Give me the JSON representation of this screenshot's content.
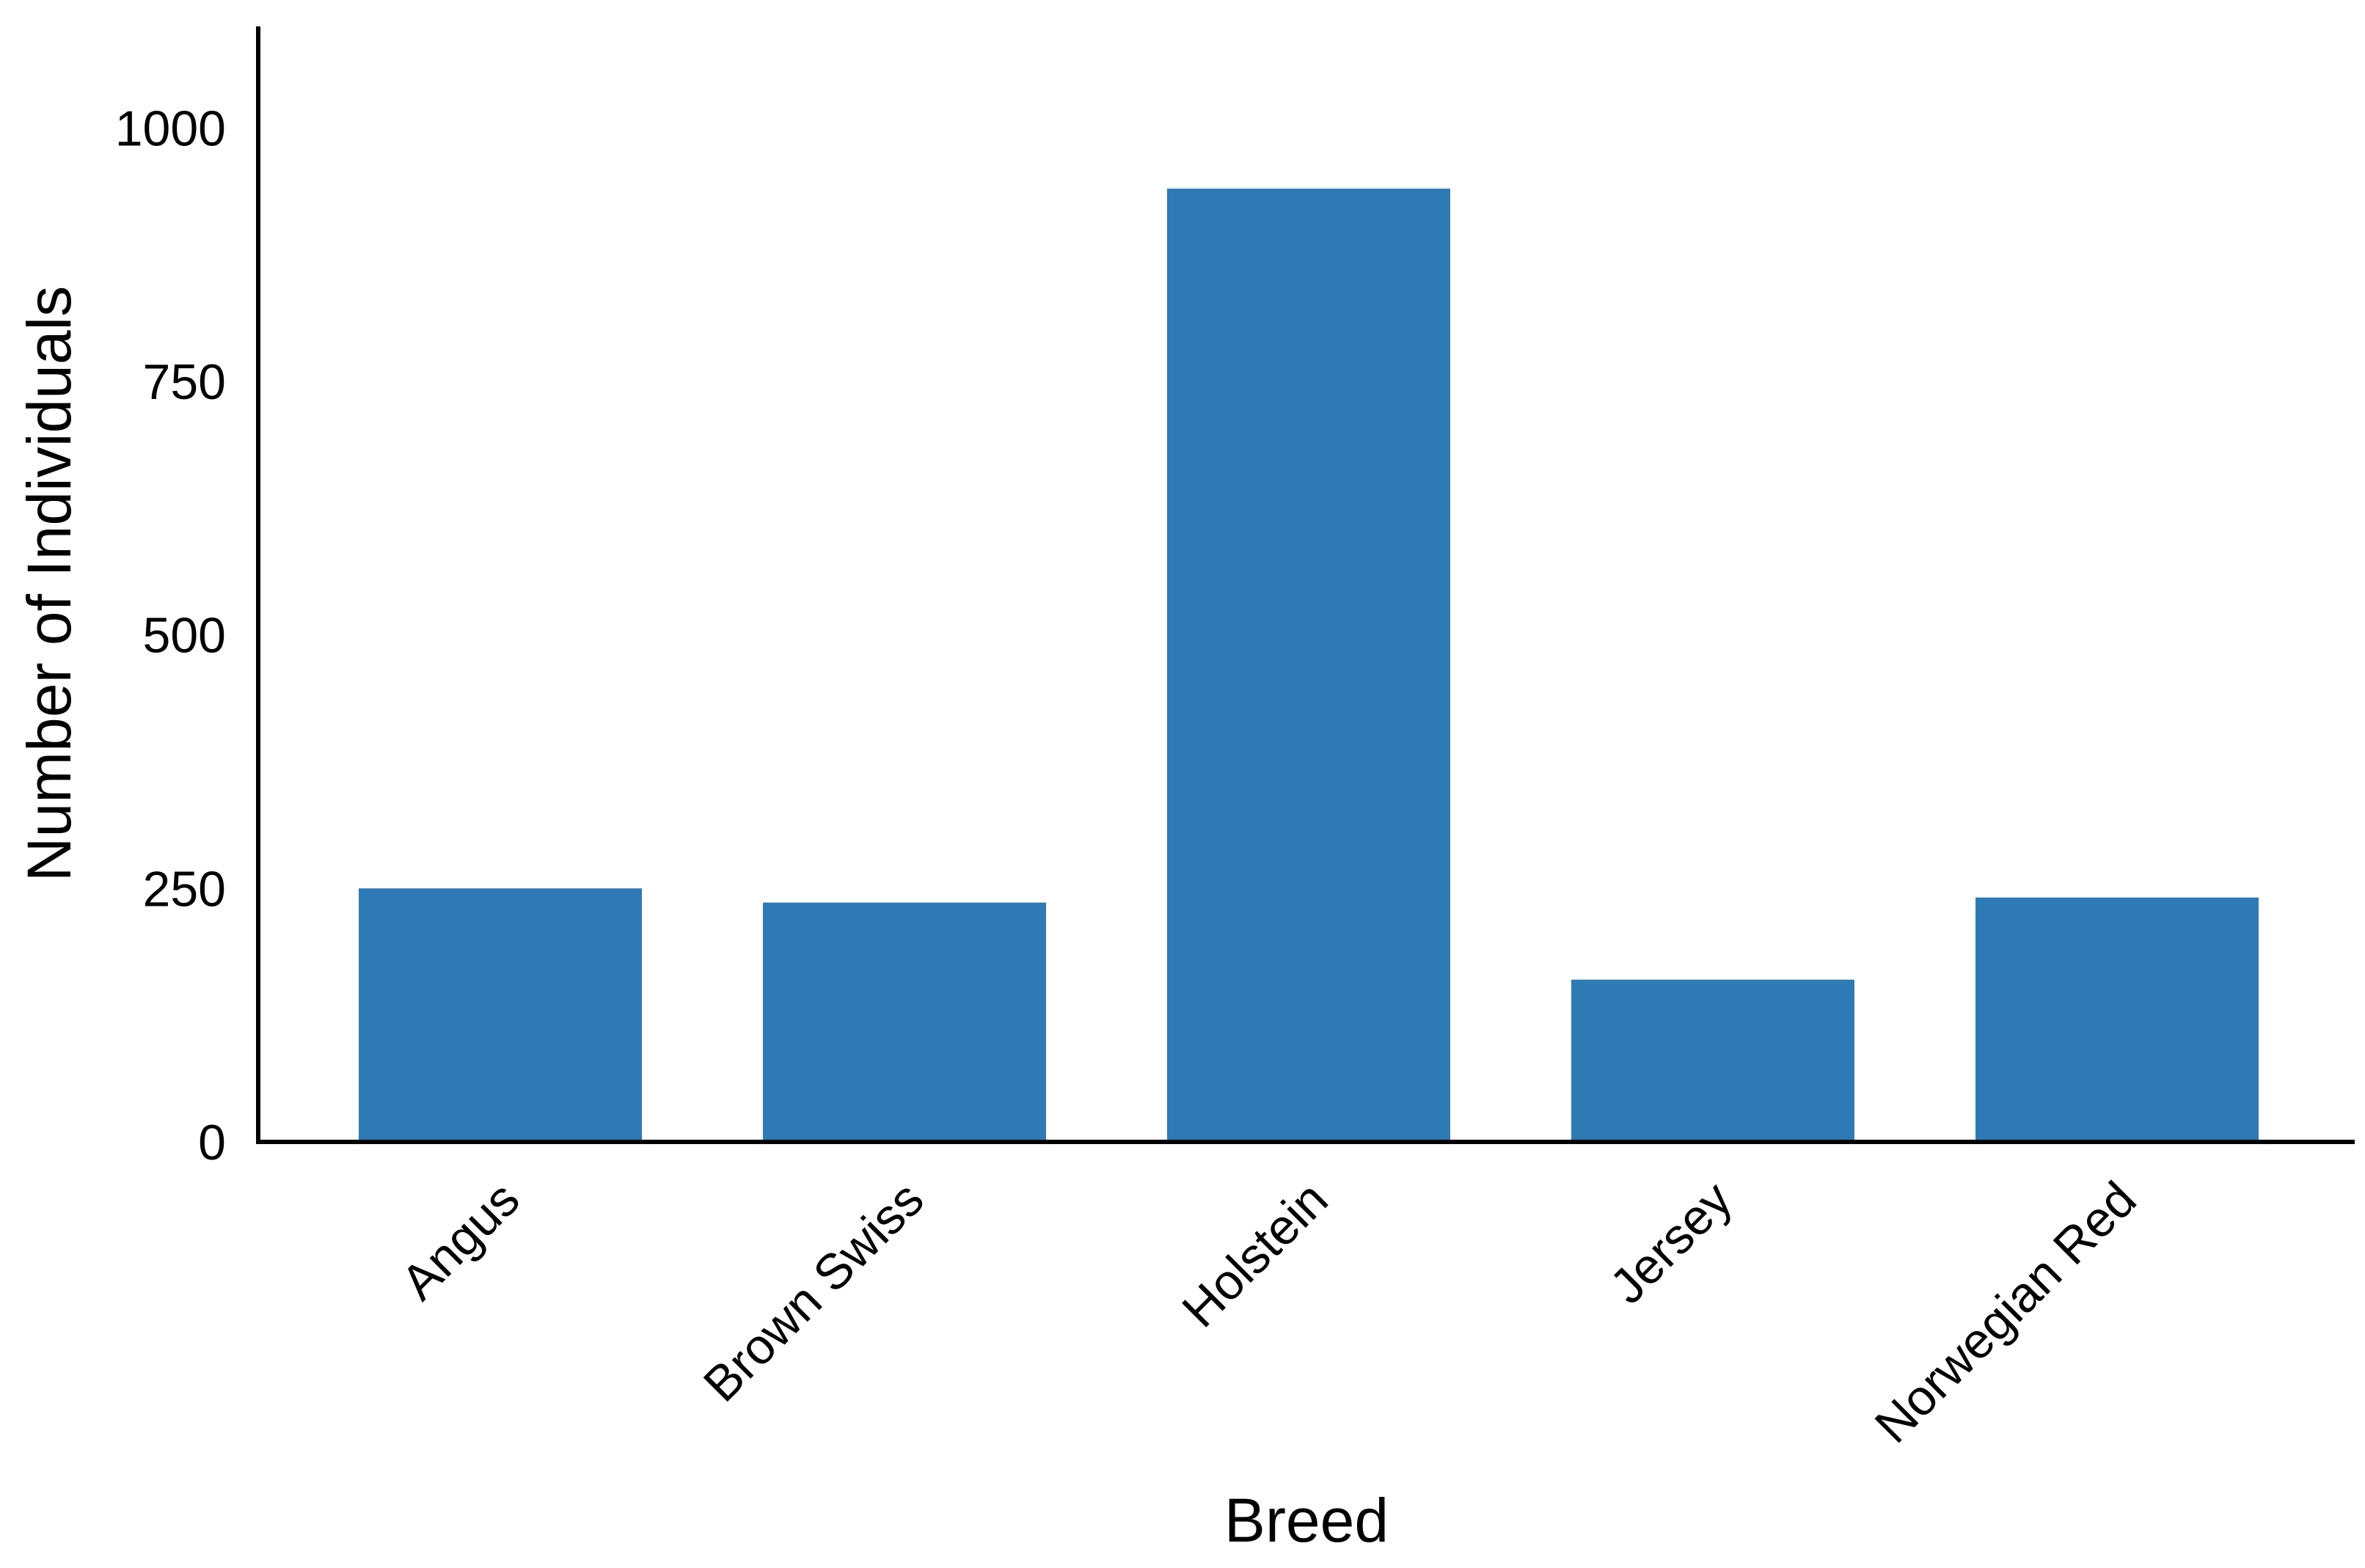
{
  "chart_data": {
    "type": "bar",
    "title": "",
    "xlabel": "Breed",
    "ylabel": "Number of Individuals",
    "categories": [
      "Angus",
      "Brown Swiss",
      "Holstein",
      "Jersey",
      "Norwegian Red"
    ],
    "values": [
      250,
      236,
      940,
      160,
      241
    ],
    "ylim": [
      0,
      1100
    ],
    "yticks": [
      0,
      250,
      500,
      750,
      1000
    ],
    "ytick_labels": [
      "0",
      "250",
      "500",
      "750",
      "1000"
    ],
    "grid": false,
    "legend": "none",
    "bar_color": "#2e7ab4",
    "axis_color": "#000000"
  }
}
